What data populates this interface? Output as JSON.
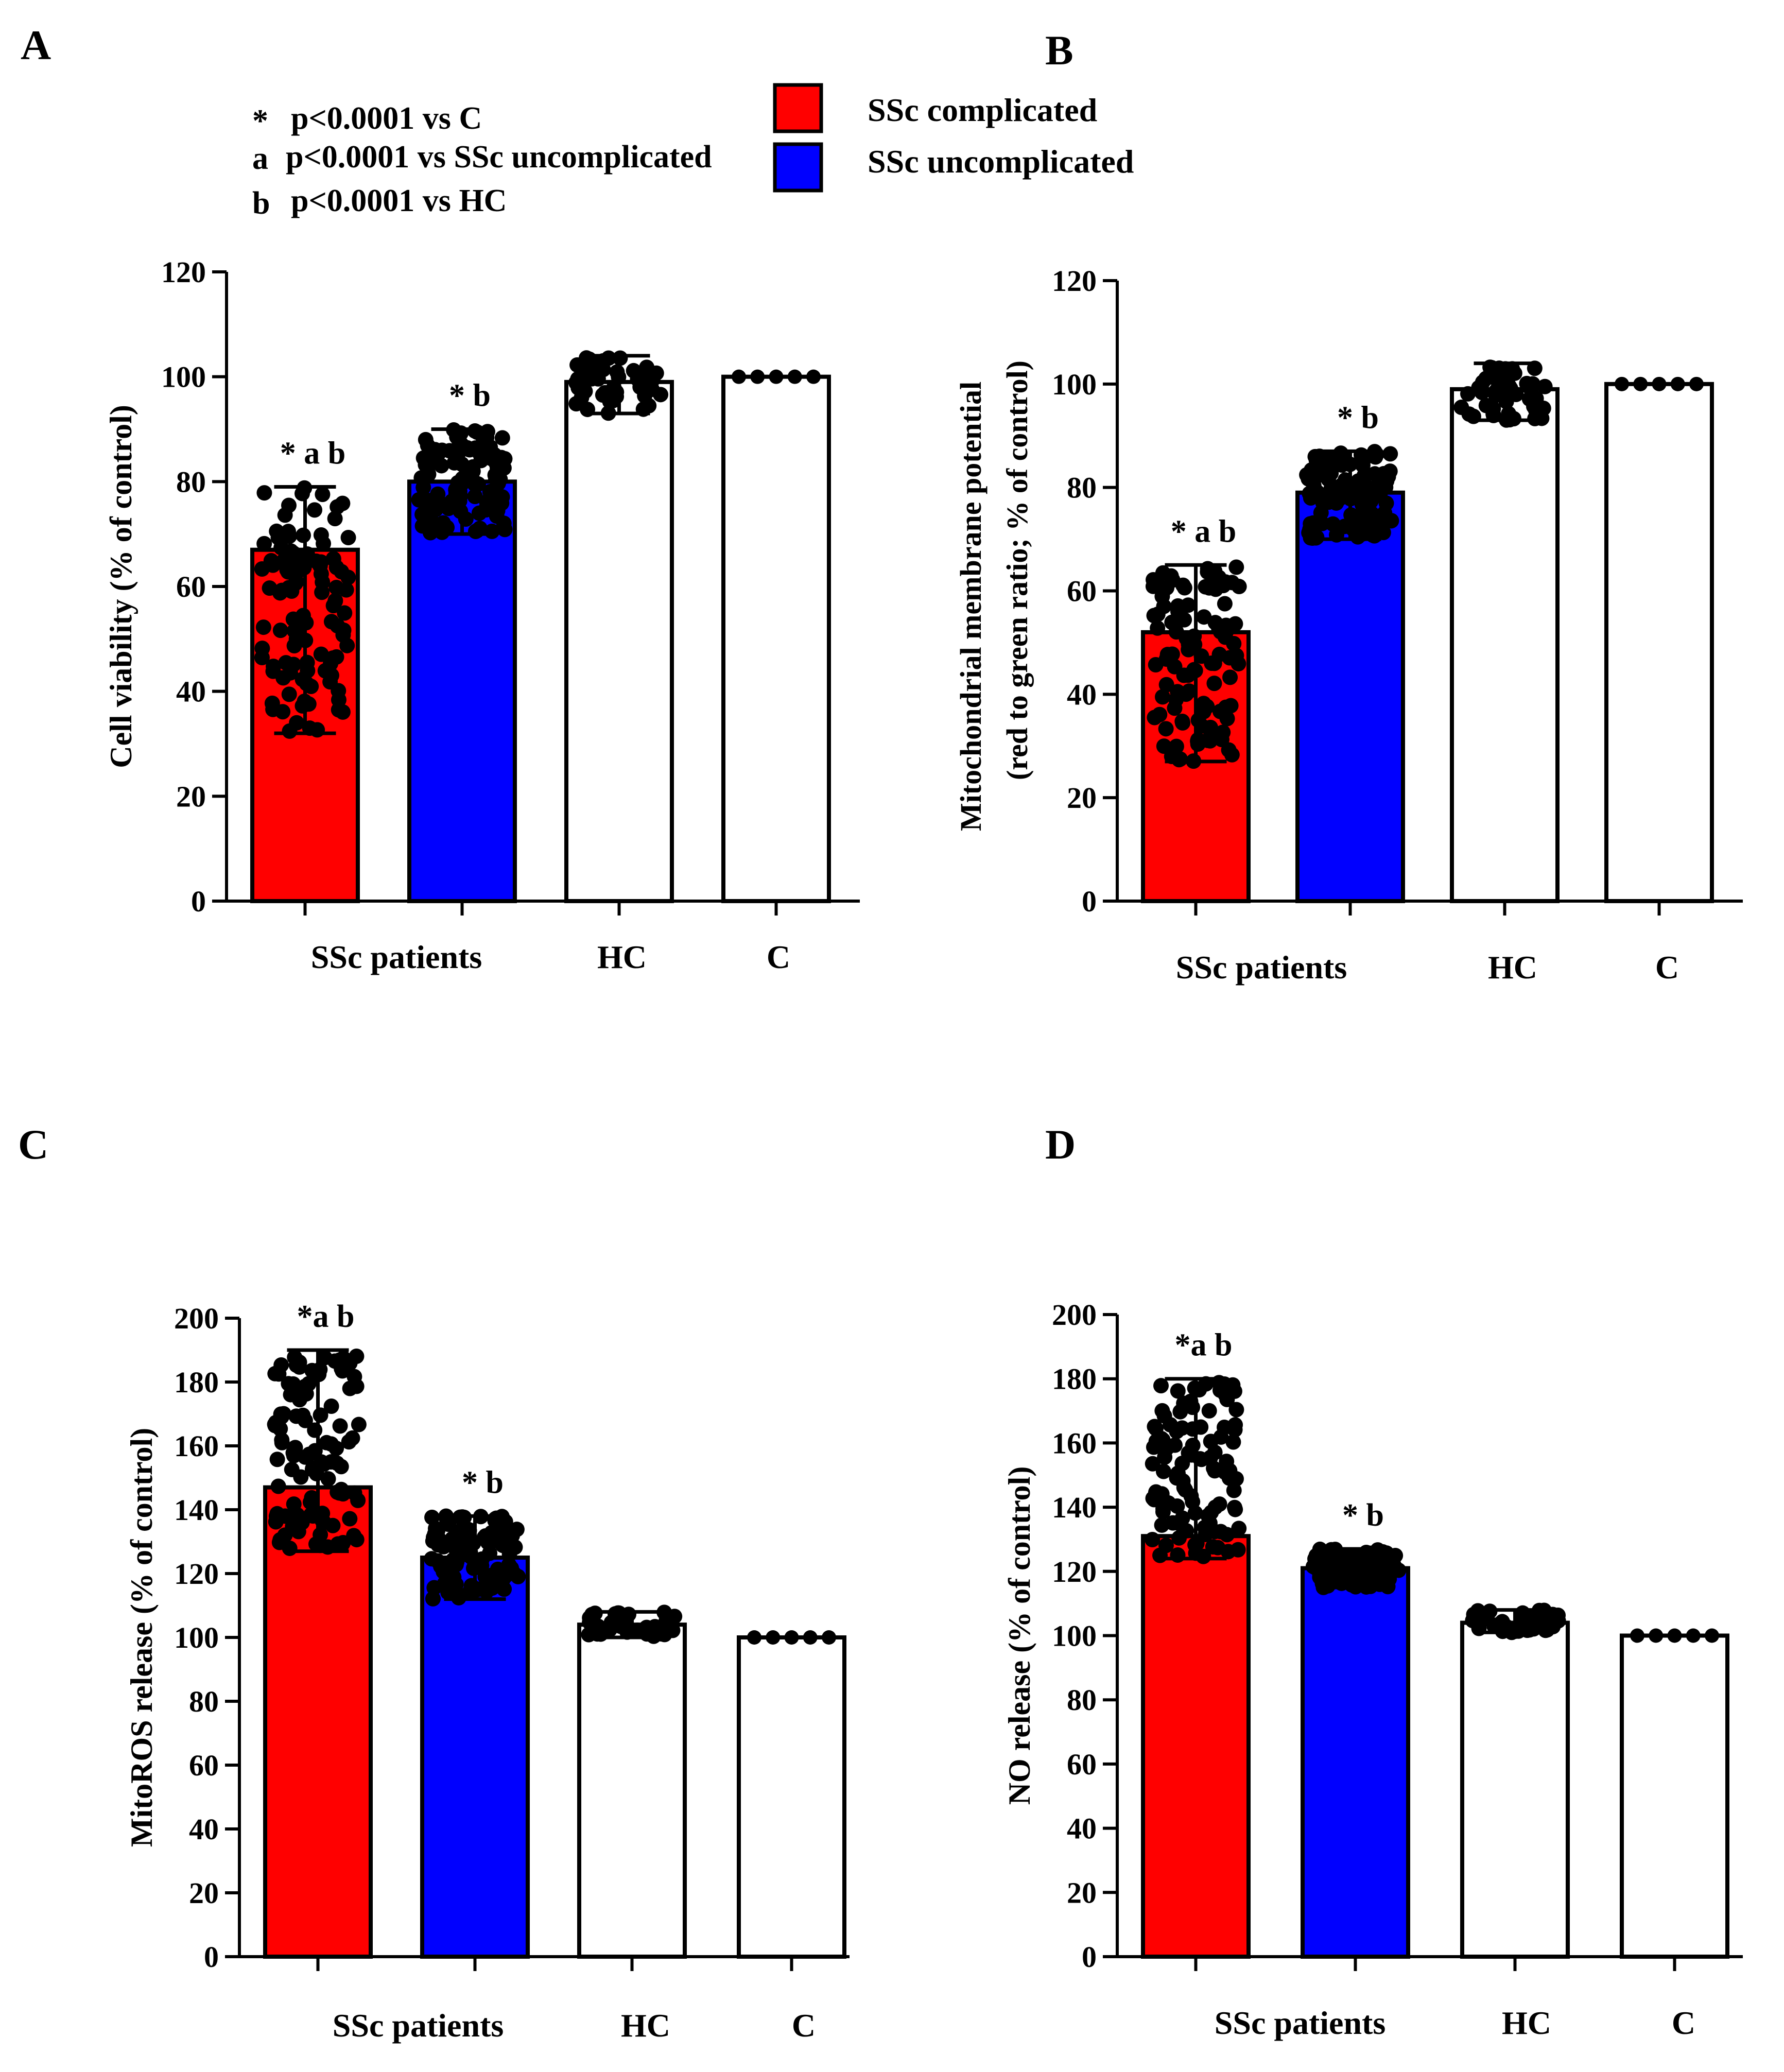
{
  "legend": {
    "notes": [
      {
        "symbol": "*",
        "text": "p<0.0001 vs C"
      },
      {
        "symbol": "a",
        "text": "p<0.0001 vs SSc uncomplicated"
      },
      {
        "symbol": "b",
        "text": "p<0.0001 vs HC"
      }
    ],
    "entries": [
      {
        "label": "SSc complicated",
        "color": "#ff0000"
      },
      {
        "label": "SSc uncomplicated",
        "color": "#0000ff"
      }
    ]
  },
  "colors": {
    "red": "#ff0000",
    "blue": "#0000ff",
    "white": "#ffffff",
    "axis": "#000000"
  },
  "chart_data": [
    {
      "panel": "A",
      "type": "bar",
      "ylabel": "Cell viability (% of control)",
      "ylabel2": "",
      "ylim": [
        0,
        120
      ],
      "ticks": [
        0,
        20,
        40,
        60,
        80,
        100,
        120
      ],
      "group_labels": [
        "SSc patients",
        "HC",
        "C"
      ],
      "bars": [
        {
          "name": "SSc complicated",
          "mean": 67,
          "err_low": 32,
          "err_high": 79,
          "color": "red",
          "annotation": "* a b"
        },
        {
          "name": "SSc uncomplicated",
          "mean": 80,
          "err_low": 70,
          "err_high": 90,
          "color": "blue",
          "annotation": "* b"
        },
        {
          "name": "HC",
          "mean": 99,
          "err_low": 93,
          "err_high": 104,
          "color": "white",
          "annotation": ""
        },
        {
          "name": "C",
          "mean": 100,
          "err_low": 100,
          "err_high": 100,
          "color": "white",
          "annotation": ""
        }
      ]
    },
    {
      "panel": "B",
      "type": "bar",
      "ylabel": "Mitochondrial membrane potential",
      "ylabel2": "(red to green ratio; % of control)",
      "ylim": [
        0,
        120
      ],
      "ticks": [
        0,
        20,
        40,
        60,
        80,
        100,
        120
      ],
      "group_labels": [
        "SSc patients",
        "HC",
        "C"
      ],
      "bars": [
        {
          "name": "SSc complicated",
          "mean": 52,
          "err_low": 27,
          "err_high": 65,
          "color": "red",
          "annotation": "* a b"
        },
        {
          "name": "SSc uncomplicated",
          "mean": 79,
          "err_low": 70,
          "err_high": 87,
          "color": "blue",
          "annotation": "* b"
        },
        {
          "name": "HC",
          "mean": 99,
          "err_low": 93,
          "err_high": 104,
          "color": "white",
          "annotation": ""
        },
        {
          "name": "C",
          "mean": 100,
          "err_low": 100,
          "err_high": 100,
          "color": "white",
          "annotation": ""
        }
      ]
    },
    {
      "panel": "C",
      "type": "bar",
      "ylabel": "MitoROS release (% of control)",
      "ylabel2": "",
      "ylim": [
        0,
        200
      ],
      "ticks": [
        0,
        20,
        40,
        60,
        80,
        100,
        120,
        140,
        160,
        180,
        200
      ],
      "group_labels": [
        "SSc patients",
        "HC",
        "C"
      ],
      "bars": [
        {
          "name": "SSc complicated",
          "mean": 147,
          "err_low": 127,
          "err_high": 190,
          "color": "red",
          "annotation": "*a b"
        },
        {
          "name": "SSc uncomplicated",
          "mean": 125,
          "err_low": 112,
          "err_high": 138,
          "color": "blue",
          "annotation": "* b"
        },
        {
          "name": "HC",
          "mean": 104,
          "err_low": 100,
          "err_high": 108,
          "color": "white",
          "annotation": ""
        },
        {
          "name": "C",
          "mean": 100,
          "err_low": 100,
          "err_high": 100,
          "color": "white",
          "annotation": ""
        }
      ]
    },
    {
      "panel": "D",
      "type": "bar",
      "ylabel": "NO release (% of control)",
      "ylabel2": "",
      "ylim": [
        0,
        200
      ],
      "ticks": [
        0,
        20,
        40,
        60,
        80,
        100,
        120,
        140,
        160,
        180,
        200
      ],
      "group_labels": [
        "SSc patients",
        "HC",
        "C"
      ],
      "bars": [
        {
          "name": "SSc complicated",
          "mean": 131,
          "err_low": 124,
          "err_high": 180,
          "color": "red",
          "annotation": "*a b"
        },
        {
          "name": "SSc uncomplicated",
          "mean": 121,
          "err_low": 115,
          "err_high": 127,
          "color": "blue",
          "annotation": "* b"
        },
        {
          "name": "HC",
          "mean": 104,
          "err_low": 101,
          "err_high": 108,
          "color": "white",
          "annotation": ""
        },
        {
          "name": "C",
          "mean": 100,
          "err_low": 100,
          "err_high": 100,
          "color": "white",
          "annotation": ""
        }
      ]
    }
  ]
}
